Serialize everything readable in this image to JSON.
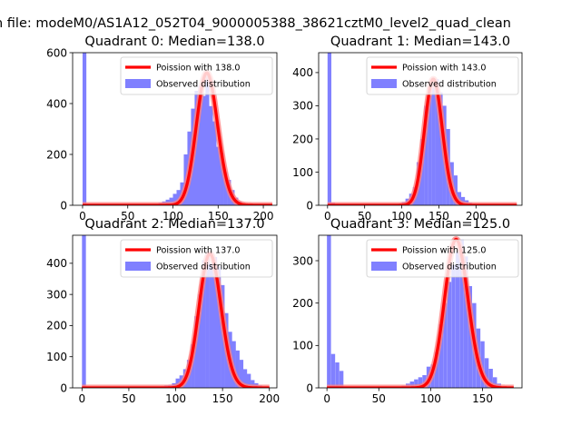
{
  "chart_data": {
    "suptitle": "n file: modeM0/AS1A12_052T04_9000005388_38621cztM0_level2_quad_clean",
    "panels": [
      {
        "type": "bar",
        "title": "Quadrant 0: Median=138.0",
        "xlim": [
          -11,
          215
        ],
        "ylim": [
          0,
          600
        ],
        "xticks": [
          "0",
          "50",
          "100",
          "150",
          "200"
        ],
        "yticks": [
          "0",
          "200",
          "400",
          "600"
        ],
        "bin_width": 4.2,
        "hist_x": [
          0,
          80,
          84,
          88,
          92,
          96,
          100,
          104,
          108,
          112,
          116,
          120,
          124,
          128,
          132,
          136,
          140,
          144,
          148,
          152,
          156,
          160,
          164,
          168,
          172,
          176,
          180
        ],
        "hist_y": [
          600,
          5,
          10,
          15,
          22,
          30,
          45,
          60,
          90,
          200,
          290,
          380,
          450,
          470,
          430,
          520,
          390,
          330,
          230,
          205,
          130,
          100,
          60,
          30,
          15,
          8,
          4
        ],
        "curve_mean": 138.0,
        "curve_xrange": [
          0,
          210
        ],
        "legend": [
          "Poission with 138.0",
          "Observed distribution"
        ]
      },
      {
        "type": "bar",
        "title": "Quadrant 1: Median=143.0",
        "xlim": [
          -12,
          262
        ],
        "ylim": [
          0,
          460
        ],
        "xticks": [
          "0",
          "50",
          "100",
          "150",
          "200"
        ],
        "yticks": [
          "0",
          "100",
          "200",
          "300",
          "400"
        ],
        "bin_width": 5.1,
        "hist_x": [
          0,
          5,
          95,
          100,
          105,
          110,
          115,
          120,
          125,
          130,
          135,
          140,
          145,
          150,
          155,
          160,
          165,
          170,
          175,
          180,
          185,
          190,
          195,
          200
        ],
        "hist_y": [
          460,
          8,
          5,
          10,
          20,
          35,
          55,
          130,
          200,
          300,
          330,
          360,
          380,
          340,
          300,
          230,
          130,
          90,
          40,
          25,
          15,
          8,
          5,
          2
        ],
        "curve_mean": 143.0,
        "curve_xrange": [
          0,
          255
        ],
        "legend": [
          "Poission with 143.0",
          "Observed distribution"
        ]
      },
      {
        "type": "bar",
        "title": "Quadrant 2: Median=137.0",
        "xlim": [
          -10,
          208
        ],
        "ylim": [
          0,
          490
        ],
        "xticks": [
          "0",
          "50",
          "100",
          "150",
          "200"
        ],
        "yticks": [
          "0",
          "100",
          "200",
          "300",
          "400"
        ],
        "bin_width": 4.2,
        "hist_x": [
          0,
          80,
          84,
          88,
          92,
          96,
          100,
          104,
          108,
          112,
          116,
          120,
          124,
          128,
          132,
          136,
          140,
          144,
          148,
          152,
          156,
          160,
          164,
          168,
          172,
          176,
          180,
          184,
          188,
          192,
          196
        ],
        "hist_y": [
          490,
          3,
          5,
          8,
          10,
          15,
          30,
          40,
          60,
          90,
          140,
          230,
          300,
          410,
          430,
          400,
          420,
          390,
          330,
          240,
          180,
          150,
          120,
          90,
          60,
          45,
          25,
          15,
          8,
          4,
          2
        ],
        "curve_mean": 137.0,
        "curve_xrange": [
          0,
          200
        ],
        "legend": [
          "Poission with 137.0",
          "Observed distribution"
        ]
      },
      {
        "type": "bar",
        "title": "Quadrant 3: Median=125.0",
        "xlim": [
          -8,
          188
        ],
        "ylim": [
          0,
          360
        ],
        "xticks": [
          "0",
          "50",
          "100",
          "150"
        ],
        "yticks": [
          "0",
          "100",
          "200",
          "300"
        ],
        "bin_width": 3.9,
        "hist_x": [
          0,
          4,
          8,
          12,
          72,
          76,
          80,
          84,
          88,
          92,
          96,
          100,
          104,
          108,
          112,
          116,
          120,
          124,
          128,
          132,
          136,
          140,
          144,
          148,
          152,
          156,
          160,
          164
        ],
        "hist_y": [
          360,
          80,
          60,
          40,
          5,
          10,
          15,
          20,
          25,
          30,
          50,
          55,
          85,
          150,
          200,
          250,
          290,
          320,
          350,
          310,
          240,
          200,
          140,
          110,
          70,
          45,
          25,
          10
        ],
        "curve_mean": 125.0,
        "curve_xrange": [
          0,
          180
        ],
        "legend": [
          "Poission with 125.0",
          "Observed distribution"
        ]
      }
    ]
  },
  "colors": {
    "curve": "#ff0000",
    "curve_glow": "#ff8080",
    "hist": "#8080ff"
  }
}
